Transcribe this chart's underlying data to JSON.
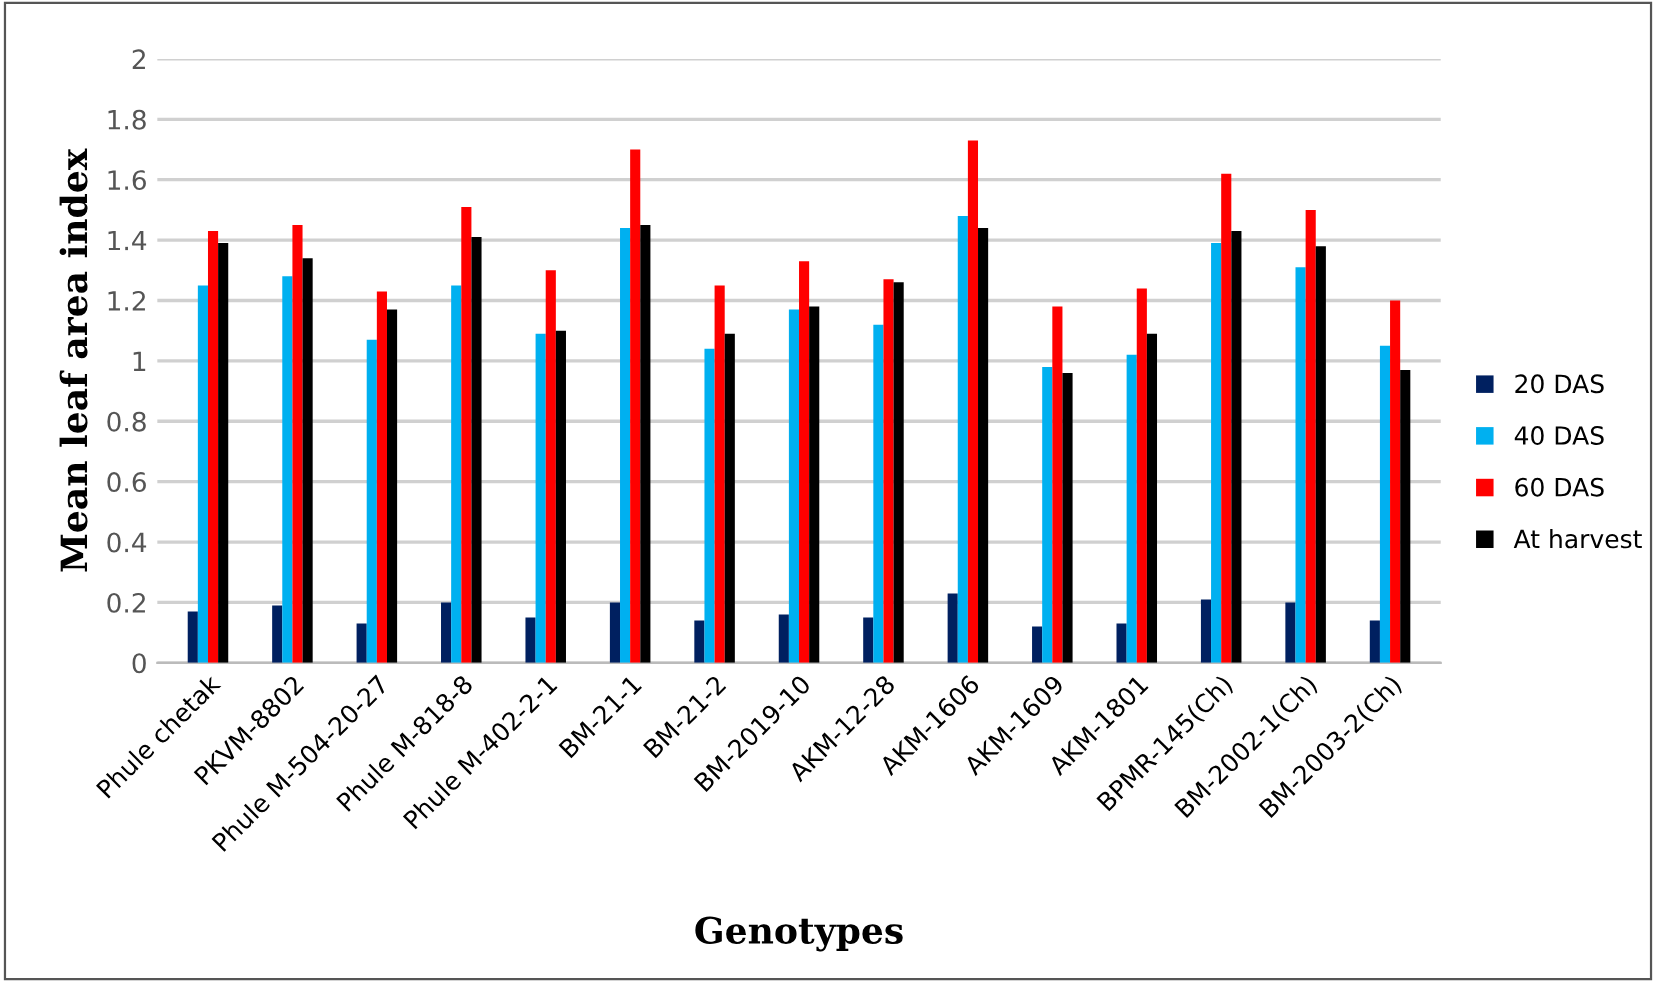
{
  "chart_data": {
    "type": "bar",
    "xlabel": "Genotypes",
    "ylabel": "Mean leaf area index",
    "categories": [
      "Phule chetak",
      "PKVM-8802",
      "Phule M-504-20-27",
      "Phule M-818-8",
      "Phule M-402-2-1",
      "BM-21-1",
      "BM-21-2",
      "BM-2019-10",
      "AKM-12-28",
      "AKM-1606",
      "AKM-1609",
      "AKM-1801",
      "BPMR-145(Ch)",
      "BM-2002-1(Ch)",
      "BM-2003-2(Ch)"
    ],
    "series": [
      {
        "name": "20 DAS",
        "color": "#002060",
        "values": [
          0.17,
          0.19,
          0.13,
          0.2,
          0.15,
          0.2,
          0.14,
          0.16,
          0.15,
          0.23,
          0.12,
          0.13,
          0.21,
          0.2,
          0.14
        ]
      },
      {
        "name": "40 DAS",
        "color": "#00b0f0",
        "values": [
          1.25,
          1.28,
          1.07,
          1.25,
          1.09,
          1.44,
          1.04,
          1.17,
          1.12,
          1.48,
          0.98,
          1.02,
          1.39,
          1.31,
          1.05
        ]
      },
      {
        "name": "60 DAS",
        "color": "#ff0000",
        "values": [
          1.43,
          1.45,
          1.23,
          1.51,
          1.3,
          1.7,
          1.25,
          1.33,
          1.27,
          1.73,
          1.18,
          1.24,
          1.62,
          1.5,
          1.2
        ]
      },
      {
        "name": "At harvest",
        "color": "#000000",
        "values": [
          1.39,
          1.34,
          1.17,
          1.41,
          1.1,
          1.45,
          1.09,
          1.18,
          1.26,
          1.44,
          0.96,
          1.09,
          1.43,
          1.38,
          0.97
        ]
      }
    ],
    "ylim": [
      0,
      2
    ],
    "yticks": [
      0,
      {
        "value": 0.2,
        "label": "0.2"
      },
      {
        "value": 0.4,
        "label": "0.4"
      },
      {
        "value": 0.6,
        "label": "0.6"
      },
      {
        "value": 0.8,
        "label": "0.8"
      },
      1,
      {
        "value": 1.2,
        "label": "1.2"
      },
      {
        "value": 1.4,
        "label": "1.4"
      },
      {
        "value": 1.6,
        "label": "1.6"
      },
      {
        "value": 1.8,
        "label": "1.8"
      },
      2
    ],
    "grid": "y",
    "legend": "right"
  }
}
